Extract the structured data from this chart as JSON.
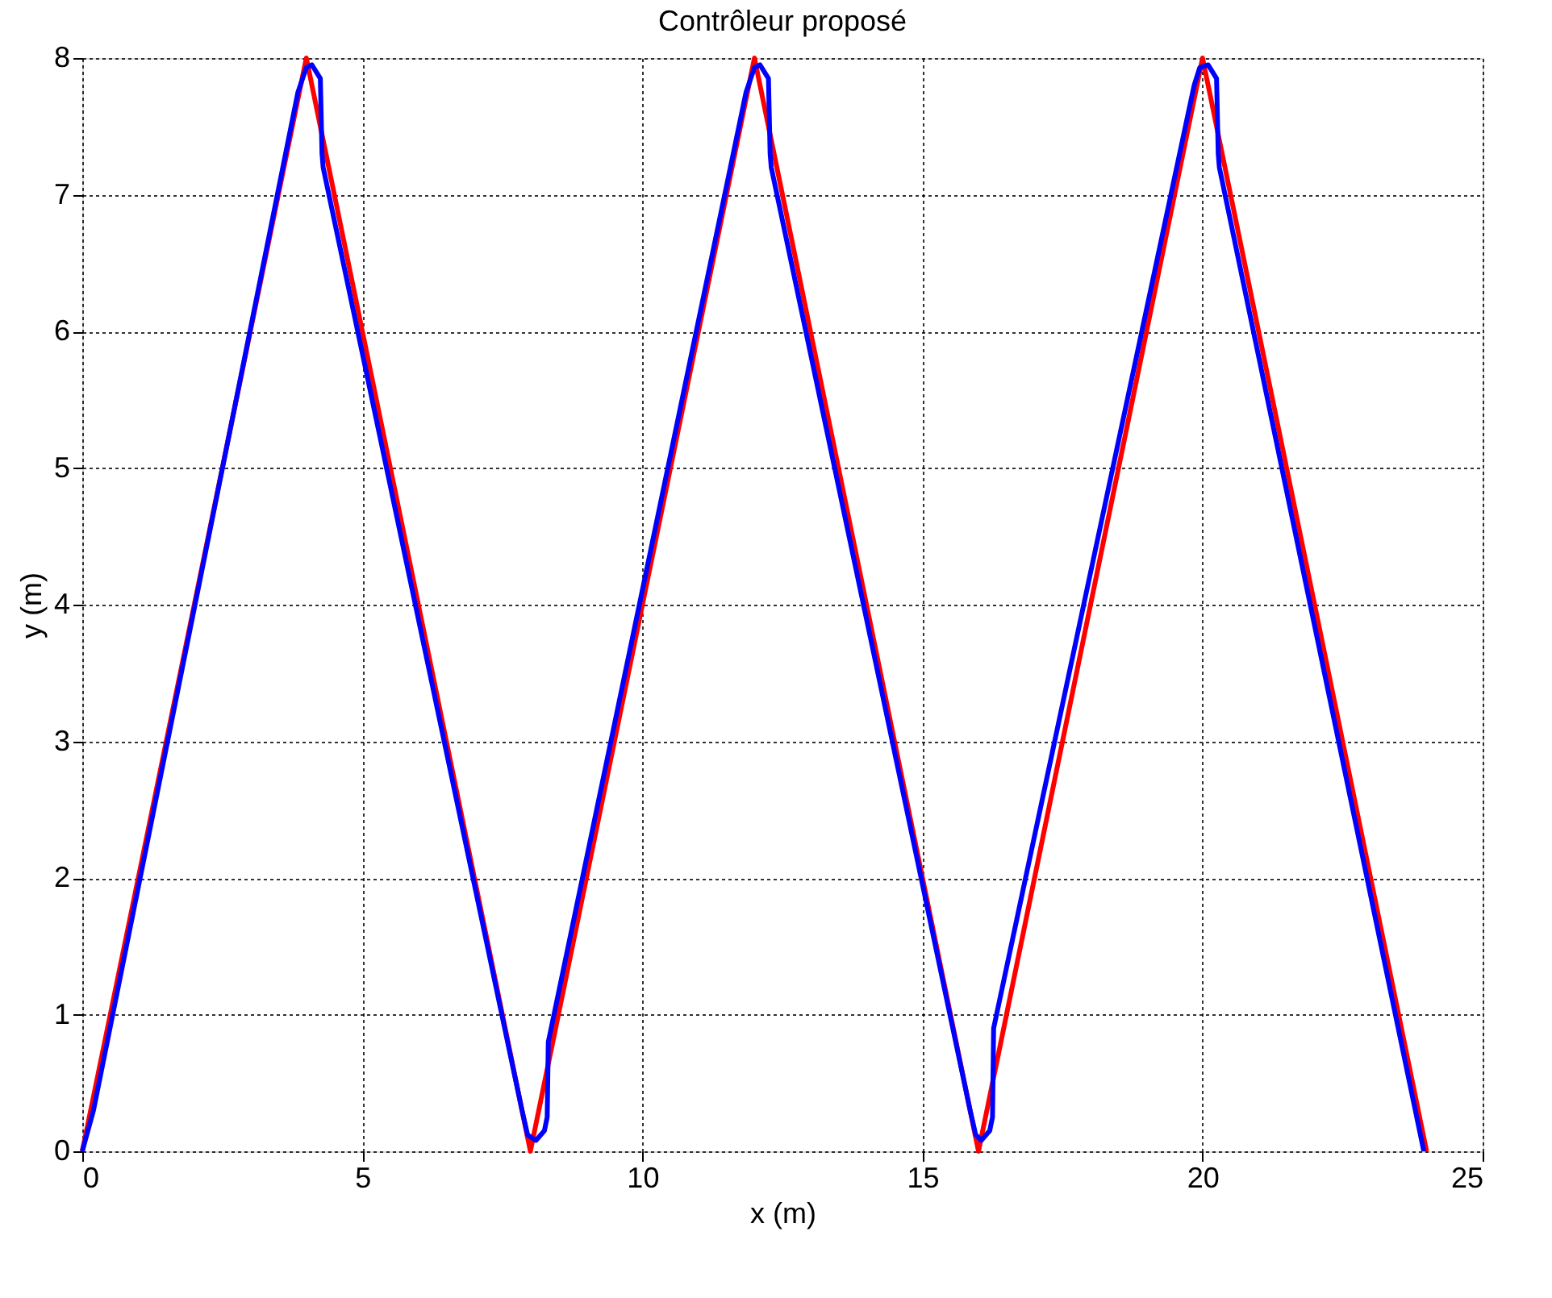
{
  "chart_data": {
    "type": "line",
    "title": "Contrôleur proposé",
    "xlabel": "x (m)",
    "ylabel": "y (m)",
    "xlim": [
      0,
      25
    ],
    "ylim": [
      0,
      8
    ],
    "xticks": [
      0,
      5,
      10,
      15,
      20,
      25
    ],
    "yticks": [
      0,
      1,
      2,
      3,
      4,
      5,
      6,
      7,
      8
    ],
    "grid": true,
    "line_style": "solid",
    "marker": "none",
    "series": [
      {
        "color": "#ff0000",
        "x": [
          0,
          4,
          8,
          12,
          16,
          20,
          24
        ],
        "values": [
          0,
          8,
          0,
          8,
          0,
          8,
          0
        ]
      },
      {
        "color": "#0000ff",
        "x": [
          0,
          0.2,
          3.85,
          4.0,
          4.1,
          4.25,
          4.28,
          4.3,
          7.85,
          7.95,
          8.1,
          8.25,
          8.3,
          8.32,
          11.85,
          12.0,
          12.1,
          12.25,
          12.28,
          12.3,
          15.85,
          15.95,
          16.05,
          16.2,
          16.25,
          16.27,
          19.85,
          19.95,
          20.1,
          20.25,
          20.28,
          20.3,
          23.95
        ],
        "values": [
          0,
          0.3,
          7.75,
          7.93,
          7.95,
          7.85,
          7.3,
          7.2,
          0.3,
          0.12,
          0.08,
          0.15,
          0.25,
          0.8,
          7.75,
          7.93,
          7.95,
          7.85,
          7.3,
          7.2,
          0.3,
          0.12,
          0.08,
          0.15,
          0.25,
          0.9,
          7.8,
          7.93,
          7.95,
          7.85,
          7.3,
          7.2,
          0
        ]
      }
    ]
  }
}
